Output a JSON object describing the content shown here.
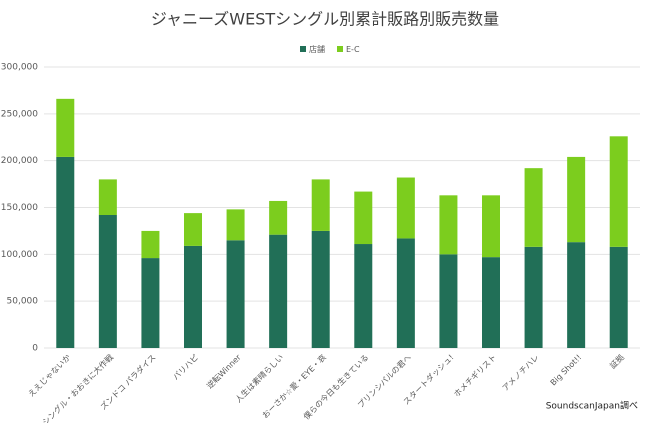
{
  "chart_data": {
    "type": "stacked_bar",
    "title": "ジャニーズWESTシングル別累計販路別販売数量",
    "categories": [
      "ええじゃないか",
      "シングル・おおきに大作戦",
      "ズンドコ パラダイス",
      "バリハピ",
      "逆転Winner",
      "人生は素晴らしい",
      "おーさか☆愛・EYE・哀",
      "僕らの今日も生きている",
      "プリンシパルの君へ",
      "スタートダッシュ!",
      "ホメチギリスト",
      "アメノチハレ",
      "Big Shot!!",
      "証拠"
    ],
    "series": [
      {
        "name": "店舗",
        "color": "#216f57",
        "values": [
          204000,
          142000,
          96000,
          109000,
          115000,
          121000,
          125000,
          111000,
          117000,
          100000,
          97000,
          108000,
          113000,
          108000
        ]
      },
      {
        "name": "E-C",
        "color": "#7ccd1e",
        "values": [
          62000,
          38000,
          29000,
          35000,
          33000,
          36000,
          55000,
          56000,
          65000,
          63000,
          66000,
          84000,
          91000,
          118000
        ]
      }
    ],
    "ylim": [
      0,
      300000
    ],
    "yticks": [
      0,
      {
        "value": 50000,
        "label": "50,000"
      },
      {
        "value": 100000,
        "label": "100,000"
      },
      {
        "value": 150000,
        "label": "150,000"
      },
      {
        "value": 200000,
        "label": "200,000"
      },
      {
        "value": 250000,
        "label": "250,000"
      },
      {
        "value": 300000,
        "label": "300,000"
      }
    ],
    "grid": true,
    "legend": "top",
    "note": "SoundscanJapan調べ"
  }
}
